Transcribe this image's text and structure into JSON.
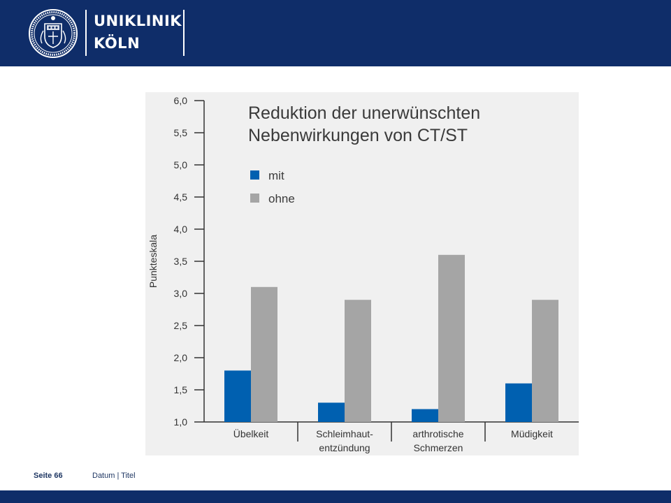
{
  "header": {
    "brand_line1": "UNIKLINIK",
    "brand_line2": "KÖLN",
    "logo_icon": "university-seal-icon",
    "background_color": "#0f2d69"
  },
  "footer": {
    "page_label": "Seite 66",
    "meta_label": "Datum | Titel"
  },
  "chart_data": {
    "type": "bar",
    "title_lines": [
      "Reduktion der unerwünschten",
      "Nebenwirkungen von CT/ST"
    ],
    "ylabel": "Punkteskala",
    "xlabel": "",
    "ylim": [
      1.0,
      6.0
    ],
    "yticks": [
      "1,0",
      "1,5",
      "2,0",
      "2,5",
      "3,0",
      "3,5",
      "4,0",
      "4,5",
      "5,0",
      "5,5",
      "6,0"
    ],
    "categories": [
      [
        "Übelkeit"
      ],
      [
        "Schleimhaut-",
        "entzündung"
      ],
      [
        "arthrotische",
        "Schmerzen"
      ],
      [
        "Müdigkeit"
      ]
    ],
    "series": [
      {
        "name": "mit",
        "color": "#0060b0",
        "values": [
          1.8,
          1.3,
          1.2,
          1.6
        ]
      },
      {
        "name": "ohne",
        "color": "#a5a5a5",
        "values": [
          3.1,
          2.9,
          3.6,
          2.9
        ]
      }
    ],
    "legend_position": "top-left",
    "grid": false
  }
}
